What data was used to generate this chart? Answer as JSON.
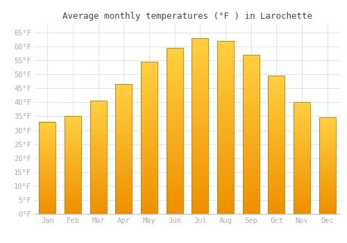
{
  "title": "Average monthly temperatures (°F ) in Larochette",
  "months": [
    "Jan",
    "Feb",
    "Mar",
    "Apr",
    "May",
    "Jun",
    "Jul",
    "Aug",
    "Sep",
    "Oct",
    "Nov",
    "Dec"
  ],
  "values": [
    33,
    35,
    40.5,
    46.5,
    54.5,
    59.5,
    63,
    62,
    57,
    49.5,
    40,
    34.5
  ],
  "bar_color_top": "#FFD040",
  "bar_color_bottom": "#F09000",
  "bar_edge_color": "#C07800",
  "ylim": [
    0,
    68
  ],
  "yticks": [
    0,
    5,
    10,
    15,
    20,
    25,
    30,
    35,
    40,
    45,
    50,
    55,
    60,
    65
  ],
  "background_color": "#ffffff",
  "grid_color": "#dddddd",
  "title_fontsize": 9,
  "tick_fontsize": 7.5,
  "tick_color": "#aaaaaa"
}
